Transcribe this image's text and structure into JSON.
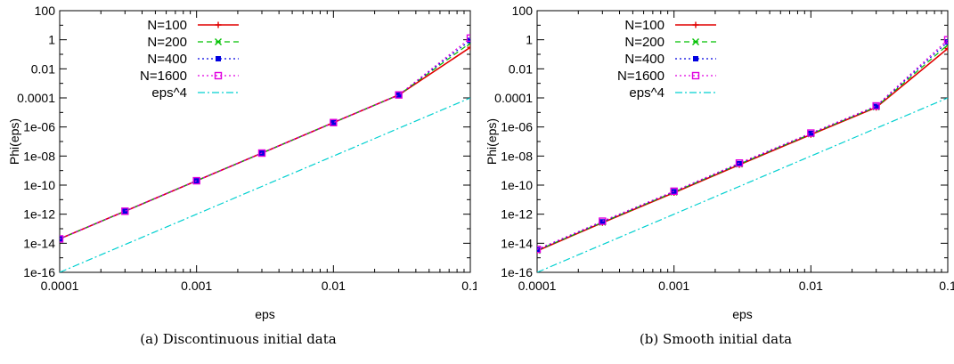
{
  "chart_data": [
    {
      "type": "line",
      "caption": "(a) Discontinuous initial data",
      "xlabel": "eps",
      "ylabel": "Phi(eps)",
      "xscale": "log",
      "yscale": "log",
      "xlim": [
        0.0001,
        0.1
      ],
      "ylim": [
        1e-16,
        100
      ],
      "xticks": [
        "0.0001",
        "0.001",
        "0.01",
        "0.1"
      ],
      "yticks": [
        "1e-16",
        "1e-14",
        "1e-12",
        "1e-10",
        "1e-08",
        "1e-06",
        "0.0001",
        "0.01",
        "1",
        "100"
      ],
      "legend_position": "top-left",
      "grid": false,
      "x": [
        0.0001,
        0.0003,
        0.001,
        0.003,
        0.01,
        0.03,
        0.1
      ],
      "series": [
        {
          "name": "N=100",
          "color": "#e00000",
          "style": "solid",
          "marker": "plus",
          "values": [
            2e-14,
            1.6e-12,
            2e-10,
            1.6e-08,
            2e-06,
            0.00016,
            0.3
          ]
        },
        {
          "name": "N=200",
          "color": "#00c000",
          "style": "dashed",
          "marker": "x",
          "values": [
            2e-14,
            1.6e-12,
            2e-10,
            1.6e-08,
            2e-06,
            0.00016,
            0.6
          ]
        },
        {
          "name": "N=400",
          "color": "#0000e0",
          "style": "dotted",
          "marker": "square-filled",
          "values": [
            2e-14,
            1.6e-12,
            2e-10,
            1.6e-08,
            2e-06,
            0.00016,
            0.9
          ]
        },
        {
          "name": "N=1600",
          "color": "#e000e0",
          "style": "dotted",
          "marker": "square-open",
          "values": [
            2e-14,
            1.6e-12,
            2e-10,
            1.6e-08,
            2e-06,
            0.00016,
            1.3
          ]
        },
        {
          "name": "eps^4",
          "color": "#00d0d0",
          "style": "dashdot",
          "marker": "none",
          "values": [
            1e-16,
            8.1e-15,
            1e-12,
            8.1e-11,
            1e-08,
            8.1e-07,
            0.0001
          ]
        }
      ]
    },
    {
      "type": "line",
      "caption": "(b) Smooth initial data",
      "xlabel": "eps",
      "ylabel": "Phi(eps)",
      "xscale": "log",
      "yscale": "log",
      "xlim": [
        0.0001,
        0.1
      ],
      "ylim": [
        1e-16,
        100
      ],
      "xticks": [
        "0.0001",
        "0.001",
        "0.01",
        "0.1"
      ],
      "yticks": [
        "1e-16",
        "1e-14",
        "1e-12",
        "1e-10",
        "1e-08",
        "1e-06",
        "0.0001",
        "0.01",
        "1",
        "100"
      ],
      "legend_position": "top-left",
      "grid": false,
      "x": [
        0.0001,
        0.0003,
        0.001,
        0.003,
        0.01,
        0.03,
        0.1
      ],
      "series": [
        {
          "name": "N=100",
          "color": "#e00000",
          "style": "solid",
          "marker": "plus",
          "values": [
            3e-15,
            2.6e-13,
            3e-11,
            2.5e-09,
            3e-07,
            2.2e-05,
            0.25
          ]
        },
        {
          "name": "N=200",
          "color": "#00c000",
          "style": "dashed",
          "marker": "x",
          "values": [
            3.2e-15,
            2.8e-13,
            3.3e-11,
            2.8e-09,
            3.3e-07,
            2.4e-05,
            0.45
          ]
        },
        {
          "name": "N=400",
          "color": "#0000e0",
          "style": "dotted",
          "marker": "square-filled",
          "values": [
            3.5e-15,
            3e-13,
            3.6e-11,
            3e-09,
            3.6e-07,
            2.6e-05,
            0.7
          ]
        },
        {
          "name": "N=1600",
          "color": "#e000e0",
          "style": "dotted",
          "marker": "square-open",
          "values": [
            3.8e-15,
            3.3e-13,
            3.8e-11,
            3.3e-09,
            3.8e-07,
            2.8e-05,
            1.0
          ]
        },
        {
          "name": "eps^4",
          "color": "#00d0d0",
          "style": "dashdot",
          "marker": "none",
          "values": [
            1e-16,
            8.1e-15,
            1e-12,
            8.1e-11,
            1e-08,
            8.1e-07,
            0.0001
          ]
        }
      ]
    }
  ]
}
